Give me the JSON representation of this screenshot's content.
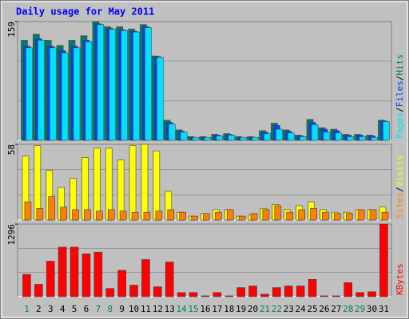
{
  "chart_data": [
    {
      "type": "bar",
      "title": "Daily usage for May 2011",
      "categories": [
        "1",
        "2",
        "3",
        "4",
        "5",
        "6",
        "7",
        "8",
        "9",
        "10",
        "11",
        "12",
        "13",
        "14",
        "15",
        "16",
        "17",
        "18",
        "19",
        "20",
        "21",
        "22",
        "23",
        "24",
        "25",
        "26",
        "27",
        "28",
        "29",
        "30",
        "31"
      ],
      "category_colors": [
        "#00805c",
        "#000000",
        "#000000",
        "#000000",
        "#000000",
        "#000000",
        "#00805c",
        "#00805c",
        "#000000",
        "#000000",
        "#000000",
        "#000000",
        "#000000",
        "#00805c",
        "#00805c",
        "#000000",
        "#000000",
        "#000000",
        "#000000",
        "#000000",
        "#00805c",
        "#00805c",
        "#000000",
        "#000000",
        "#000000",
        "#000000",
        "#000000",
        "#00805c",
        "#00805c",
        "#000000",
        "#000000"
      ],
      "legend_separator": "/",
      "ylim": [
        0,
        159
      ],
      "yticks": [
        159
      ],
      "series": [
        {
          "name": "Hits",
          "color": "#00805c",
          "values": [
            134,
            142,
            134,
            127,
            134,
            140,
            159,
            152,
            152,
            149,
            155,
            113,
            27,
            14,
            5,
            5,
            8,
            9,
            5,
            5,
            13,
            23,
            14,
            7,
            28,
            17,
            15,
            8,
            8,
            7,
            27
          ]
        },
        {
          "name": "Files",
          "color": "#0040ff",
          "values": [
            126,
            136,
            126,
            120,
            126,
            134,
            156,
            150,
            148,
            146,
            152,
            112,
            24,
            12,
            4,
            4,
            7,
            8,
            4,
            4,
            11,
            20,
            12,
            6,
            24,
            15,
            13,
            7,
            7,
            6,
            26
          ]
        },
        {
          "name": "Pages",
          "color": "#00e0ff",
          "values": [
            124,
            134,
            124,
            117,
            124,
            132,
            155,
            149,
            147,
            145,
            151,
            111,
            22,
            11,
            4,
            4,
            6,
            7,
            4,
            4,
            9,
            15,
            10,
            5,
            21,
            11,
            10,
            5,
            5,
            4,
            25
          ]
        }
      ]
    },
    {
      "type": "bar",
      "ylim": [
        0,
        58
      ],
      "yticks": [
        58
      ],
      "series": [
        {
          "name": "Visits",
          "color": "#ffff00",
          "values": [
            49,
            57,
            38,
            25,
            32,
            48,
            55,
            55,
            46,
            57,
            58,
            53,
            22,
            6,
            3,
            5,
            8,
            8,
            3,
            4,
            9,
            12,
            8,
            11,
            14,
            8,
            6,
            6,
            8,
            8,
            10
          ]
        },
        {
          "name": "Sites",
          "color": "#ff8000",
          "values": [
            14,
            9,
            18,
            10,
            8,
            8,
            7,
            8,
            7,
            6,
            6,
            7,
            8,
            6,
            3,
            5,
            6,
            8,
            3,
            5,
            8,
            11,
            6,
            8,
            9,
            6,
            5,
            5,
            8,
            8,
            6
          ]
        }
      ]
    },
    {
      "type": "bar",
      "ylim": [
        0,
        1296
      ],
      "yticks": [
        1296
      ],
      "series": [
        {
          "name": "KBytes",
          "color": "#ff0000",
          "values": [
            398,
            221,
            633,
            884,
            884,
            766,
            795,
            147,
            471,
            206,
            663,
            177,
            619,
            74,
            74,
            15,
            74,
            15,
            162,
            191,
            44,
            162,
            191,
            191,
            309,
            15,
            15,
            250,
            74,
            88,
            1296
          ]
        }
      ]
    }
  ]
}
